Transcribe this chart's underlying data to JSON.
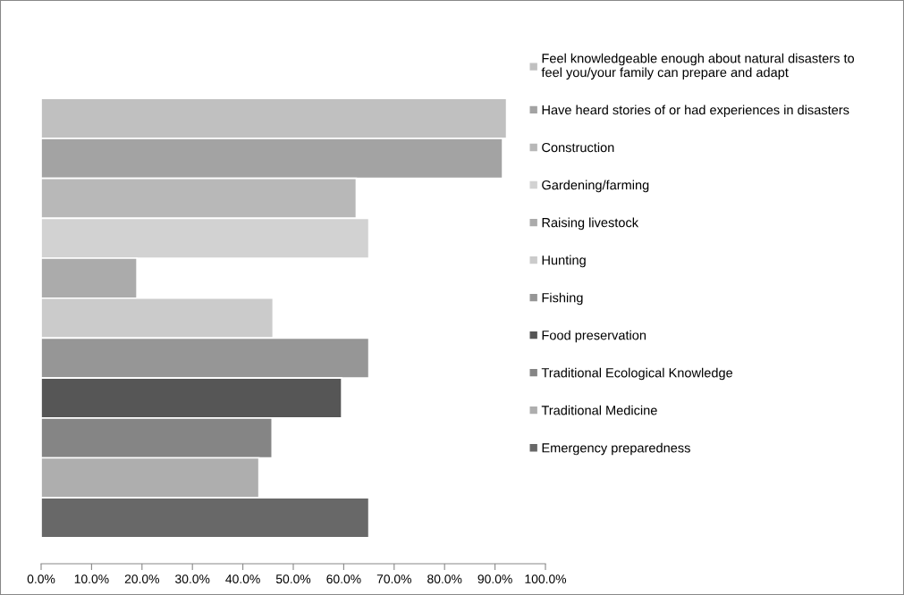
{
  "chart_data": {
    "type": "bar",
    "orientation": "horizontal",
    "categories": [
      null
    ],
    "series": [
      {
        "name": "Feel knowledgeable enough about natural disasters to\nfeel you/your family can prepare and adapt",
        "color": "#c0c0c0",
        "values": [
          92.3
        ]
      },
      {
        "name": "Have heard stories of or had experiences in disasters",
        "color": "#a3a3a3",
        "values": [
          91.5
        ]
      },
      {
        "name": "Construction",
        "color": "#b8b8b8",
        "values": [
          62.5
        ]
      },
      {
        "name": "Gardening/farming",
        "color": "#d2d2d2",
        "values": [
          65.0
        ]
      },
      {
        "name": "Raising livestock",
        "color": "#ababab",
        "values": [
          19.0
        ]
      },
      {
        "name": "Hunting",
        "color": "#cbcbcb",
        "values": [
          46.0
        ]
      },
      {
        "name": "Fishing",
        "color": "#969696",
        "values": [
          65.0
        ]
      },
      {
        "name": "Food preservation",
        "color": "#565656",
        "values": [
          59.6
        ]
      },
      {
        "name": "Traditional Ecological Knowledge",
        "color": "#858585",
        "values": [
          45.8
        ]
      },
      {
        "name": "Traditional Medicine",
        "color": "#aeaeae",
        "values": [
          43.2
        ]
      },
      {
        "name": "Emergency preparedness",
        "color": "#686868",
        "values": [
          65.0
        ]
      }
    ],
    "xlim": [
      0,
      100
    ],
    "xticks": [
      {
        "value": 0,
        "label": "0.0%"
      },
      {
        "value": 10,
        "label": "10.0%"
      },
      {
        "value": 20,
        "label": "20.0%"
      },
      {
        "value": 30,
        "label": "30.0%"
      },
      {
        "value": 40,
        "label": "40.0%"
      },
      {
        "value": 50,
        "label": "50.0%"
      },
      {
        "value": 60,
        "label": "60.0%"
      },
      {
        "value": 70,
        "label": "70.0%"
      },
      {
        "value": 80,
        "label": "80.0%"
      },
      {
        "value": 90,
        "label": "90.0%"
      },
      {
        "value": 100,
        "label": "100.0%"
      }
    ],
    "grid": false,
    "legend": "right",
    "tick_labels": "x"
  }
}
